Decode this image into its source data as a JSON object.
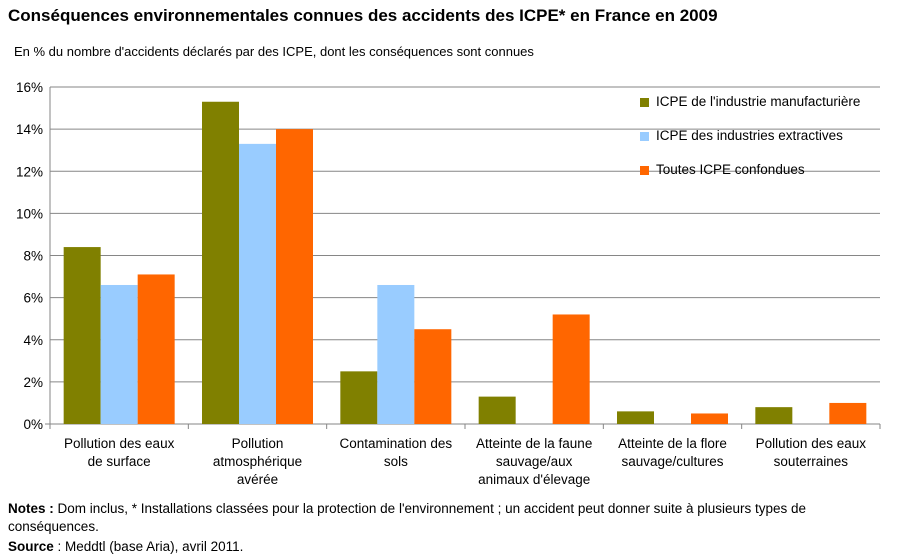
{
  "title": "Conséquences environnementales connues des accidents des ICPE* en France en 2009",
  "subtitle": "En % du nombre d'accidents déclarés par des ICPE, dont les conséquences sont connues",
  "notes": {
    "label": "Notes :",
    "text": " Dom inclus, * Installations classées pour la protection de l'environnement ; un accident peut donner suite à plusieurs types de conséquences."
  },
  "source": {
    "label": "Source",
    "text": " : Meddtl (base Aria), avril 2011."
  },
  "chart_data": {
    "type": "bar",
    "categories": [
      "Pollution des eaux de surface",
      "Pollution atmosphérique avérée",
      "Contamination des sols",
      "Atteinte de la faune sauvage/aux animaux d'élevage",
      "Atteinte de la flore sauvage/cultures",
      "Pollution des eaux souterraines"
    ],
    "category_lines": [
      [
        "Pollution des eaux",
        "de surface"
      ],
      [
        "Pollution",
        "atmosphérique",
        "avérée"
      ],
      [
        "Contamination des",
        "sols"
      ],
      [
        "Atteinte de la faune",
        "sauvage/aux",
        "animaux d'élevage"
      ],
      [
        "Atteinte de la flore",
        "sauvage/cultures"
      ],
      [
        "Pollution des eaux",
        "souterraines"
      ]
    ],
    "series": [
      {
        "name": "ICPE de l'industrie manufacturière",
        "color": "#808000",
        "values": [
          8.4,
          15.3,
          2.5,
          1.3,
          0.6,
          0.8
        ]
      },
      {
        "name": "ICPE des industries extractives",
        "color": "#99ccff",
        "values": [
          6.6,
          13.3,
          6.6,
          0,
          0,
          0
        ]
      },
      {
        "name": "Toutes ICPE confondues",
        "color": "#ff6600",
        "values": [
          7.1,
          14.0,
          4.5,
          5.2,
          0.5,
          1.0
        ]
      }
    ],
    "yticks": [
      "0%",
      "2%",
      "4%",
      "6%",
      "8%",
      "10%",
      "12%",
      "14%",
      "16%"
    ],
    "ylim": [
      0,
      16
    ],
    "ystep": 2,
    "grid": true,
    "legend_position": "top-right"
  }
}
